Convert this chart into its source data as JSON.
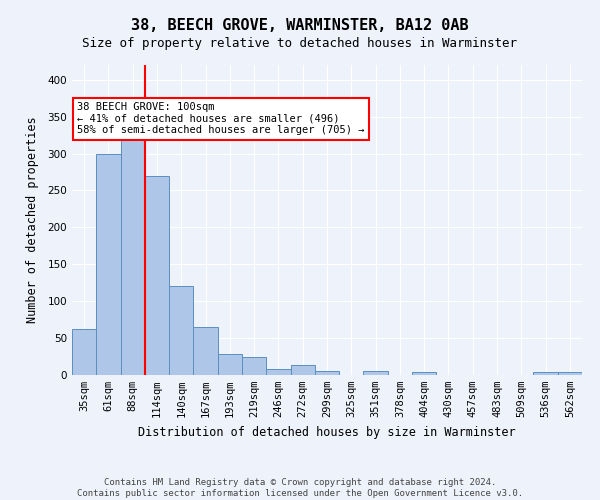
{
  "title": "38, BEECH GROVE, WARMINSTER, BA12 0AB",
  "subtitle": "Size of property relative to detached houses in Warminster",
  "xlabel": "Distribution of detached houses by size in Warminster",
  "ylabel": "Number of detached properties",
  "categories": [
    "35sqm",
    "61sqm",
    "88sqm",
    "114sqm",
    "140sqm",
    "167sqm",
    "193sqm",
    "219sqm",
    "246sqm",
    "272sqm",
    "299sqm",
    "325sqm",
    "351sqm",
    "378sqm",
    "404sqm",
    "430sqm",
    "457sqm",
    "483sqm",
    "509sqm",
    "536sqm",
    "562sqm"
  ],
  "values": [
    63,
    300,
    330,
    270,
    120,
    65,
    29,
    25,
    8,
    13,
    5,
    0,
    5,
    0,
    4,
    0,
    0,
    0,
    0,
    4,
    4
  ],
  "bar_color": "#aec6e8",
  "bar_edge_color": "#5a8fc0",
  "red_line_x": 2.5,
  "annotation_text": "38 BEECH GROVE: 100sqm\n← 41% of detached houses are smaller (496)\n58% of semi-detached houses are larger (705) →",
  "annotation_box_color": "white",
  "annotation_box_edge": "red",
  "footnote": "Contains HM Land Registry data © Crown copyright and database right 2024.\nContains public sector information licensed under the Open Government Licence v3.0.",
  "ylim": [
    0,
    420
  ],
  "yticks": [
    0,
    50,
    100,
    150,
    200,
    250,
    300,
    350,
    400
  ],
  "background_color": "#eef2fb",
  "grid_color": "#ffffff",
  "title_fontsize": 11,
  "subtitle_fontsize": 9,
  "label_fontsize": 8.5,
  "tick_fontsize": 7.5,
  "footnote_fontsize": 6.5
}
